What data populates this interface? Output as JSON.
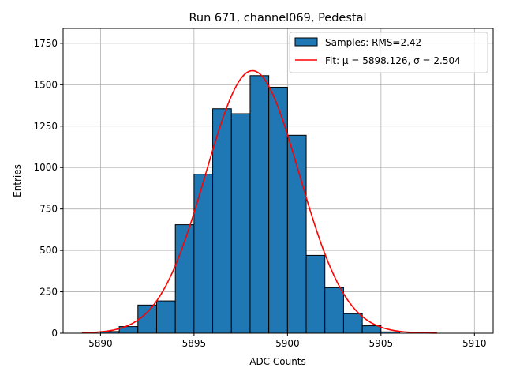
{
  "chart_data": {
    "type": "bar",
    "title": "Run 671, channel069, Pedestal",
    "xlabel": "ADC Counts",
    "ylabel": "Entries",
    "xlim": [
      5888.0,
      5911.0
    ],
    "ylim": [
      0,
      1840
    ],
    "xticks": [
      5890,
      5895,
      5900,
      5905,
      5910
    ],
    "yticks": [
      0,
      250,
      500,
      750,
      1000,
      1250,
      1500,
      1750
    ],
    "grid": true,
    "legend_position": "top-right",
    "histogram": {
      "name": "Samples: RMS=2.42",
      "bin_edges": [
        5890,
        5891,
        5892,
        5893,
        5894,
        5895,
        5896,
        5897,
        5898,
        5899,
        5900,
        5901,
        5902,
        5903,
        5904,
        5905,
        5906
      ],
      "counts": [
        10,
        40,
        170,
        195,
        655,
        960,
        1355,
        1325,
        1555,
        1485,
        1195,
        470,
        275,
        118,
        45,
        8
      ],
      "color": "#1f77b4",
      "edgecolor": "#000000"
    },
    "fit": {
      "name": "Fit: μ = 5898.126, σ = 2.504",
      "mu": 5898.126,
      "sigma": 2.504,
      "amplitude": 1585,
      "x_range": [
        5889,
        5908
      ],
      "color": "#ff0000"
    }
  }
}
